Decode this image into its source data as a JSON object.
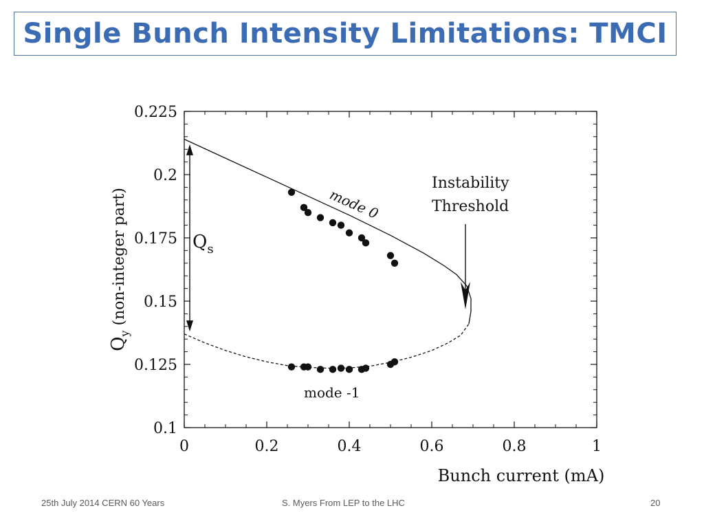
{
  "slide": {
    "title": "Single Bunch Intensity Limitations: TMCI",
    "footer_left": "25th July 2014 CERN 60 Years",
    "footer_center": "S. Myers From LEP to the LHC",
    "page_number": "20",
    "title_color": "#3a6bb3",
    "title_border_color": "#4a6fa5"
  },
  "chart_data": {
    "type": "scatter",
    "title": "",
    "xlabel": "Bunch current (mA)",
    "ylabel_main": "Q",
    "ylabel_sub": "y",
    "ylabel_rest": "(non-integer part)",
    "xlim": [
      0,
      1
    ],
    "ylim": [
      0.1,
      0.225
    ],
    "x_ticks": [
      "0",
      "0.2",
      "0.4",
      "0.6",
      "0.8",
      "1"
    ],
    "x_tick_values": [
      0,
      0.2,
      0.4,
      0.6,
      0.8,
      1
    ],
    "y_ticks": [
      "0.1",
      "0.125",
      "0.15",
      "0.175",
      "0.2",
      "0.225"
    ],
    "y_tick_values": [
      0.1,
      0.125,
      0.15,
      0.175,
      0.2,
      0.225
    ],
    "grid": false,
    "series": [
      {
        "name": "mode 0",
        "label": "mode 0",
        "points": [
          [
            0.26,
            0.193
          ],
          [
            0.29,
            0.187
          ],
          [
            0.3,
            0.185
          ],
          [
            0.33,
            0.183
          ],
          [
            0.36,
            0.181
          ],
          [
            0.38,
            0.18
          ],
          [
            0.4,
            0.177
          ],
          [
            0.43,
            0.175
          ],
          [
            0.44,
            0.173
          ],
          [
            0.5,
            0.168
          ],
          [
            0.51,
            0.165
          ]
        ],
        "fit_line": [
          [
            0.0,
            0.214
          ],
          [
            0.1,
            0.2065
          ],
          [
            0.2,
            0.199
          ],
          [
            0.3,
            0.1915
          ],
          [
            0.4,
            0.184
          ],
          [
            0.5,
            0.176
          ],
          [
            0.58,
            0.169
          ],
          [
            0.63,
            0.164
          ],
          [
            0.66,
            0.1605
          ],
          [
            0.685,
            0.156
          ],
          [
            0.695,
            0.151
          ],
          [
            0.695,
            0.146
          ],
          [
            0.69,
            0.141
          ]
        ]
      },
      {
        "name": "mode -1",
        "label": "mode -1",
        "points": [
          [
            0.26,
            0.124
          ],
          [
            0.29,
            0.124
          ],
          [
            0.3,
            0.124
          ],
          [
            0.33,
            0.123
          ],
          [
            0.36,
            0.123
          ],
          [
            0.38,
            0.1235
          ],
          [
            0.4,
            0.123
          ],
          [
            0.43,
            0.123
          ],
          [
            0.44,
            0.1235
          ],
          [
            0.5,
            0.125
          ],
          [
            0.51,
            0.126
          ]
        ],
        "fit_line": [
          [
            0.0,
            0.137
          ],
          [
            0.05,
            0.1335
          ],
          [
            0.1,
            0.1305
          ],
          [
            0.15,
            0.128
          ],
          [
            0.2,
            0.126
          ],
          [
            0.25,
            0.1245
          ],
          [
            0.3,
            0.1238
          ],
          [
            0.35,
            0.1235
          ],
          [
            0.4,
            0.1236
          ],
          [
            0.45,
            0.1243
          ],
          [
            0.5,
            0.1258
          ],
          [
            0.55,
            0.1278
          ],
          [
            0.6,
            0.1305
          ],
          [
            0.64,
            0.1335
          ],
          [
            0.67,
            0.1365
          ],
          [
            0.69,
            0.141
          ]
        ]
      }
    ],
    "annotations": {
      "qs_label": "Q",
      "qs_sub": "s",
      "threshold_line1": "Instability",
      "threshold_line2": "Threshold",
      "threshold_x": 0.7,
      "qs_arrow_x": 0.01,
      "qs_arrow_from": 0.212,
      "qs_arrow_to": 0.138
    }
  }
}
